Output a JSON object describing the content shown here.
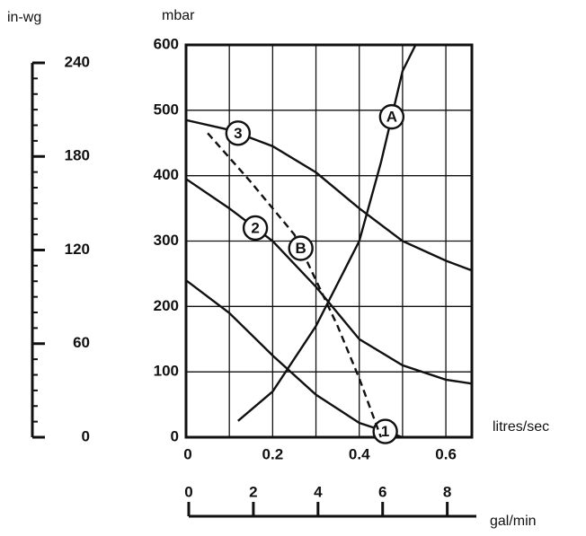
{
  "chart_data": {
    "type": "line",
    "x_label": "litres/sec",
    "y_label": "mbar",
    "xlim": [
      0,
      0.66
    ],
    "ylim": [
      0,
      600
    ],
    "xticks": [
      0,
      0.2,
      0.4,
      0.6
    ],
    "yticks": [
      0,
      100,
      200,
      300,
      400,
      500,
      600
    ],
    "xgrid": [
      0.1,
      0.2,
      0.3,
      0.4,
      0.5,
      0.6
    ],
    "grid": true,
    "series": [
      {
        "name": "1",
        "color": "#111",
        "dashed": false,
        "x": [
          0,
          0.1,
          0.2,
          0.3,
          0.4,
          0.5
        ],
        "values": [
          240,
          190,
          125,
          65,
          22,
          0
        ]
      },
      {
        "name": "2",
        "color": "#111",
        "dashed": false,
        "x": [
          0,
          0.1,
          0.2,
          0.3,
          0.35,
          0.4,
          0.5,
          0.6,
          0.66
        ],
        "values": [
          395,
          350,
          300,
          230,
          190,
          150,
          110,
          88,
          82
        ]
      },
      {
        "name": "3",
        "color": "#111",
        "dashed": false,
        "x": [
          0,
          0.1,
          0.2,
          0.3,
          0.4,
          0.5,
          0.6,
          0.66
        ],
        "values": [
          485,
          470,
          445,
          405,
          350,
          300,
          270,
          255
        ]
      },
      {
        "name": "A",
        "color": "#111",
        "dashed": false,
        "x": [
          0.12,
          0.2,
          0.3,
          0.4,
          0.45,
          0.5,
          0.53
        ],
        "values": [
          25,
          70,
          170,
          300,
          420,
          560,
          600
        ]
      },
      {
        "name": "B",
        "color": "#111",
        "dashed": true,
        "x": [
          0.05,
          0.15,
          0.25,
          0.3,
          0.35,
          0.4,
          0.45
        ],
        "values": [
          465,
          390,
          310,
          240,
          170,
          90,
          0
        ]
      }
    ],
    "left_axis": {
      "label": "in-wg",
      "lim": [
        0,
        240
      ],
      "ticks": [
        0,
        60,
        120,
        180,
        240
      ],
      "minor_step": 10
    },
    "bottom_axis": {
      "label": "gal/min",
      "lim": [
        0,
        8.9
      ],
      "ticks": [
        0,
        2,
        4,
        6,
        8
      ]
    }
  }
}
